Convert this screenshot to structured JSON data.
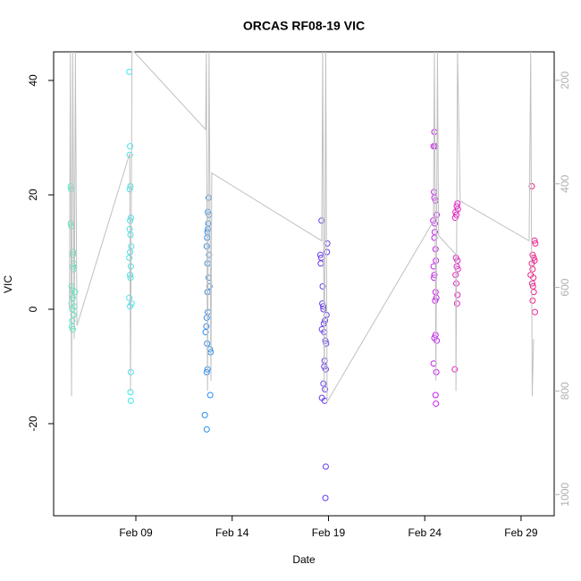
{
  "chart_data": {
    "type": "scatter",
    "title": "ORCAS RF08-19 VIC",
    "xlabel": "Date",
    "ylabel": "VIC",
    "xlim": [
      4.73,
      30.72
    ],
    "xticks": [
      {
        "value": 9,
        "label": "Feb 09"
      },
      {
        "value": 14,
        "label": "Feb 14"
      },
      {
        "value": 19,
        "label": "Feb 19"
      },
      {
        "value": 24,
        "label": "Feb 24"
      },
      {
        "value": 29,
        "label": "Feb 29"
      }
    ],
    "ylim": [
      -36.1,
      45
    ],
    "yticks": [
      -20,
      0,
      20,
      40
    ],
    "y2lim": [
      1041,
      145
    ],
    "y2ticks": [
      200,
      400,
      600,
      800,
      1000
    ],
    "series": [
      {
        "color": "#33f5c2",
        "x": [
          5.62,
          5.64,
          5.62,
          5.66,
          5.74,
          5.72,
          5.78,
          5.74,
          5.76,
          5.66,
          5.7,
          5.84,
          5.68,
          5.72,
          5.66,
          5.8,
          5.7,
          5.76,
          5.7,
          5.68,
          5.72
        ],
        "values": [
          21.5,
          21,
          15,
          14.5,
          10,
          9.5,
          8,
          7.5,
          7,
          4,
          3.5,
          3,
          2.5,
          2,
          1,
          0.5,
          0,
          -1,
          -2,
          -3,
          -3.5
        ]
      },
      {
        "color": "#3ee6ea",
        "x": [
          8.66,
          8.7,
          8.68,
          8.72,
          8.68,
          8.74,
          8.7,
          8.68,
          8.72,
          8.76,
          8.7,
          8.66,
          8.74,
          8.7,
          8.72,
          8.66,
          8.78,
          8.7,
          8.74,
          8.72,
          8.74
        ],
        "values": [
          41.5,
          28.5,
          27,
          21.5,
          21,
          16,
          15.5,
          14,
          13,
          11,
          10,
          9,
          7.5,
          6,
          5.5,
          2,
          1,
          0.5,
          -11,
          -14.5,
          -16
        ]
      },
      {
        "color": "#2a8cf0",
        "x": [
          12.78,
          12.74,
          12.8,
          12.76,
          12.74,
          12.72,
          12.7,
          12.68,
          12.8,
          12.72,
          12.78,
          12.82,
          12.72,
          12.74,
          12.68,
          12.66,
          12.62,
          12.7,
          12.84,
          12.88,
          12.72,
          12.68,
          12.86,
          12.58,
          12.68
        ],
        "values": [
          19.5,
          17,
          16.5,
          15,
          14,
          13.5,
          12.5,
          11,
          9.5,
          8,
          5.5,
          4,
          3,
          -0.5,
          -1.5,
          -3,
          -4,
          -6,
          -7,
          -7.5,
          -10.5,
          -11,
          -15,
          -18.5,
          -21
        ]
      },
      {
        "color": "#6a3cf0",
        "x": [
          18.64,
          18.94,
          18.92,
          18.58,
          18.62,
          18.6,
          18.7,
          18.68,
          18.72,
          18.74,
          18.9,
          18.82,
          18.76,
          18.66,
          18.78,
          18.84,
          18.88,
          18.8,
          18.78,
          18.86,
          18.74,
          18.82,
          18.66,
          18.8,
          18.86,
          18.84
        ],
        "values": [
          15.5,
          11.5,
          10,
          9.5,
          9,
          8,
          4,
          1,
          0.5,
          0,
          -1,
          -2,
          -2.5,
          -3.5,
          -4,
          -5.5,
          -6,
          -9,
          -10,
          -10.5,
          -13,
          -14,
          -15.5,
          -16,
          -27.5,
          -33
        ]
      },
      {
        "color": "#c81ef0",
        "x": [
          24.5,
          24.46,
          24.54,
          24.48,
          24.5,
          24.56,
          24.62,
          24.44,
          24.52,
          24.52,
          24.5,
          24.56,
          24.58,
          24.46,
          24.5,
          24.48,
          24.56,
          24.6,
          24.54,
          24.56,
          24.5,
          24.62,
          24.46,
          24.6,
          24.56,
          24.58
        ],
        "values": [
          31,
          28.5,
          28.5,
          20.5,
          19.5,
          19,
          16.5,
          15.5,
          15,
          13.5,
          12.5,
          10.5,
          8.5,
          7.5,
          6,
          5.5,
          3,
          2,
          1.5,
          -4.5,
          -5,
          -5.5,
          -9.5,
          -11,
          -15,
          -16.5
        ]
      },
      {
        "color": "#e81ec8",
        "x": [
          25.7,
          25.66,
          25.72,
          25.6,
          25.64,
          25.58,
          25.62,
          25.7,
          25.66,
          25.72,
          25.6,
          25.64,
          25.7,
          25.68,
          25.56
        ],
        "values": [
          18.5,
          18,
          17.5,
          17,
          16.5,
          16,
          9,
          8.5,
          7.5,
          7,
          6,
          4.5,
          2.5,
          1,
          -10.5
        ]
      },
      {
        "color": "#f0208c",
        "x": [
          29.56,
          29.7,
          29.74,
          29.6,
          29.66,
          29.7,
          29.56,
          29.6,
          29.5,
          29.64,
          29.58,
          29.62,
          29.66,
          29.6,
          29.72
        ],
        "values": [
          21.5,
          12,
          11.5,
          9.5,
          9,
          8.5,
          8,
          7,
          6,
          5.5,
          4.5,
          4,
          3,
          1.5,
          -0.5
        ]
      },
      {
        "type": "line",
        "axis": "y2",
        "color": "#c0c0c0",
        "x": [
          5.55,
          5.6,
          5.66,
          5.72,
          5.8,
          5.86,
          5.94,
          8.68,
          8.72,
          8.8,
          8.91,
          12.62,
          12.66,
          12.72,
          12.8,
          12.9,
          12.94,
          18.65,
          18.7,
          18.78,
          18.86,
          18.93,
          24.45,
          24.5,
          24.58,
          24.66,
          24.72,
          25.61,
          25.62,
          25.7,
          25.84,
          29.42,
          29.5,
          29.58,
          29.65
        ],
        "values": [
          640,
          145,
          810,
          145,
          700,
          145,
          674,
          341,
          800,
          145,
          145,
          295,
          145,
          800,
          145,
          780,
          379,
          510,
          145,
          800,
          145,
          821,
          472,
          145,
          780,
          145,
          500,
          536,
          800,
          145,
          433,
          510,
          145,
          810,
          700
        ]
      }
    ]
  }
}
